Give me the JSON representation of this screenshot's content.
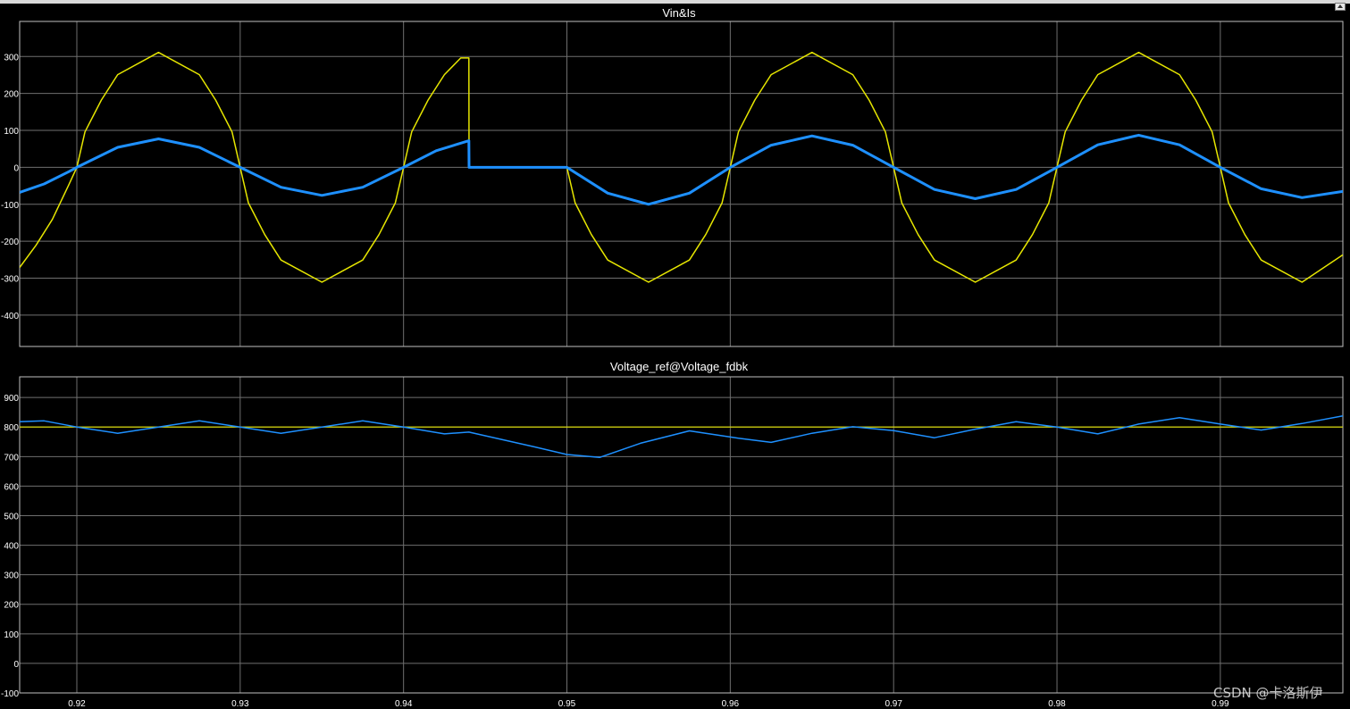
{
  "window": {
    "restore_icon": "restore-icon"
  },
  "watermark": "CSDN @卡洛斯伊",
  "colors": {
    "background": "#000000",
    "grid": "#6f6f6f",
    "axes": "#bfbfbf",
    "text": "#ffffff",
    "yellow": "#e6e600",
    "blue": "#1e90ff"
  },
  "chart_data": [
    {
      "type": "line",
      "title": "Vin&Is",
      "xlim": [
        0.9165,
        0.9975
      ],
      "ylim": [
        -485,
        395
      ],
      "xticks": [
        0.92,
        0.93,
        0.94,
        0.95,
        0.96,
        0.97,
        0.98,
        0.99
      ],
      "xtick_labels": [],
      "yticks": [
        300,
        200,
        100,
        0,
        -100,
        -200,
        -300,
        -400
      ],
      "ytick_labels": [
        "300",
        "200",
        "100",
        "0",
        "-100",
        "-200",
        "-300",
        "-400"
      ],
      "grid": true,
      "series": [
        {
          "color": "#e6e600",
          "width": 1.5,
          "x": [
            0.9165,
            0.9175,
            0.9185,
            0.9195,
            0.92,
            0.9205,
            0.9215,
            0.9225,
            0.925,
            0.9275,
            0.9285,
            0.9295,
            0.93,
            0.9305,
            0.9315,
            0.9325,
            0.935,
            0.9375,
            0.9385,
            0.9395,
            0.94,
            0.9405,
            0.9415,
            0.9425,
            0.9435,
            0.944,
            0.94401,
            0.95,
            0.9505,
            0.9515,
            0.9525,
            0.955,
            0.9575,
            0.9585,
            0.9595,
            0.96,
            0.9605,
            0.9615,
            0.9625,
            0.965,
            0.9675,
            0.9685,
            0.9695,
            0.97,
            0.9705,
            0.9715,
            0.9725,
            0.975,
            0.9775,
            0.9785,
            0.9795,
            0.98,
            0.9805,
            0.9815,
            0.9825,
            0.985,
            0.9875,
            0.9885,
            0.9895,
            0.99,
            0.9905,
            0.9915,
            0.9925,
            0.995,
            0.9975
          ],
          "y": [
            -271,
            -211,
            -141,
            -48,
            0,
            96,
            182,
            251,
            311,
            251,
            182,
            96,
            0,
            -96,
            -182,
            -251,
            -311,
            -251,
            -182,
            -96,
            0,
            96,
            182,
            251,
            296,
            296,
            0,
            0,
            -96,
            -182,
            -251,
            -311,
            -251,
            -182,
            -96,
            0,
            96,
            182,
            251,
            311,
            251,
            182,
            96,
            0,
            -96,
            -182,
            -251,
            -311,
            -251,
            -182,
            -96,
            0,
            96,
            182,
            251,
            311,
            251,
            182,
            96,
            0,
            -96,
            -182,
            -251,
            -311,
            -237
          ]
        },
        {
          "color": "#1e90ff",
          "width": 3,
          "x": [
            0.9165,
            0.918,
            0.9195,
            0.92,
            0.9225,
            0.925,
            0.9275,
            0.93,
            0.9325,
            0.935,
            0.9375,
            0.94,
            0.942,
            0.944,
            0.94401,
            0.95,
            0.9525,
            0.955,
            0.9575,
            0.96,
            0.9625,
            0.965,
            0.9675,
            0.97,
            0.9725,
            0.975,
            0.9775,
            0.98,
            0.9825,
            0.985,
            0.9875,
            0.99,
            0.9925,
            0.995,
            0.9975
          ],
          "y": [
            -68,
            -45,
            -12,
            0,
            54,
            77,
            54,
            0,
            -54,
            -76,
            -54,
            0,
            45,
            72,
            0,
            0,
            -70,
            -100,
            -70,
            0,
            60,
            85,
            60,
            0,
            -60,
            -85,
            -60,
            0,
            61,
            87,
            61,
            0,
            -58,
            -82,
            -65
          ]
        }
      ]
    },
    {
      "type": "line",
      "title": "Voltage_ref@Voltage_fdbk",
      "xlim": [
        0.9165,
        0.9975
      ],
      "ylim": [
        -100,
        970
      ],
      "xticks": [
        0.92,
        0.93,
        0.94,
        0.95,
        0.96,
        0.97,
        0.98,
        0.99
      ],
      "xtick_labels": [
        "0.92",
        "0.93",
        "0.94",
        "0.95",
        "0.96",
        "0.97",
        "0.98",
        "0.99"
      ],
      "yticks": [
        900,
        800,
        700,
        600,
        500,
        400,
        300,
        200,
        100,
        0,
        -100
      ],
      "ytick_labels": [
        "900",
        "800",
        "700",
        "600",
        "500",
        "400",
        "300",
        "200",
        "100",
        "0",
        "-100"
      ],
      "grid": true,
      "series": [
        {
          "color": "#e6e600",
          "width": 1.2,
          "x": [
            0.9165,
            0.9975
          ],
          "y": [
            800,
            800
          ]
        },
        {
          "color": "#1e90ff",
          "width": 1.5,
          "x": [
            0.9165,
            0.918,
            0.92,
            0.9225,
            0.925,
            0.9275,
            0.93,
            0.9325,
            0.935,
            0.9375,
            0.94,
            0.9425,
            0.944,
            0.948,
            0.95,
            0.952,
            0.9545,
            0.9575,
            0.9605,
            0.9625,
            0.965,
            0.9675,
            0.97,
            0.9725,
            0.975,
            0.9775,
            0.98,
            0.9825,
            0.985,
            0.9875,
            0.99,
            0.9925,
            0.995,
            0.9975
          ],
          "y": [
            818,
            821,
            800,
            779,
            800,
            821,
            800,
            779,
            800,
            821,
            800,
            777,
            783,
            733,
            707,
            697,
            745,
            787,
            762,
            748,
            779,
            801,
            788,
            764,
            793,
            818,
            800,
            777,
            810,
            832,
            810,
            790,
            812,
            838
          ]
        }
      ]
    }
  ]
}
